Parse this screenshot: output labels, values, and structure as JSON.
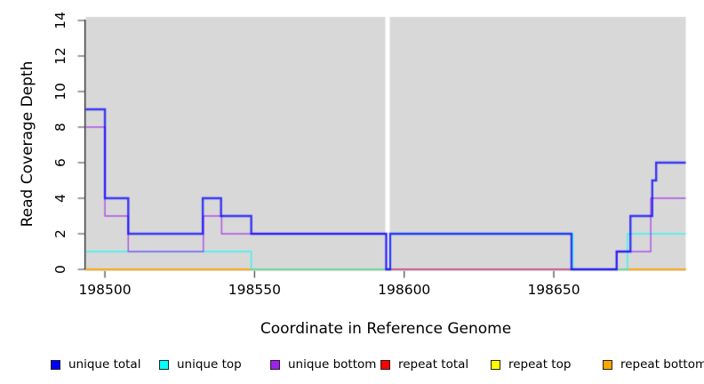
{
  "figure": {
    "page_bg_color": "#FFFFFF",
    "plot_bg_color": "#D8D8D8",
    "axis_color": "#000000",
    "tick_color": "#3a3a3a",
    "text_color": "#000000"
  },
  "chart_data": {
    "type": "line",
    "subtype": "step-coverage",
    "title": "",
    "xlabel": "Coordinate in Reference Genome",
    "ylabel": "Read Coverage Depth",
    "xlim": [
      198493.6,
      198694.1
    ],
    "ylim": [
      0,
      14
    ],
    "xticks": [
      198500,
      198550,
      198600,
      198650
    ],
    "yticks": [
      0,
      2,
      4,
      6,
      8,
      10,
      12,
      14
    ],
    "grid": false,
    "legend_position": "bottom",
    "gap_region": {
      "x_start": 198593.7,
      "x_end": 198595.2,
      "color": "#FFFFFF"
    },
    "line_alpha": 0.75,
    "draw_order": [
      "repeat total",
      "repeat top",
      "repeat bottom",
      "unique top",
      "unique bottom",
      "unique total"
    ],
    "series": [
      {
        "name": "unique total",
        "color": "#0000FF",
        "line_width": 2.4,
        "steps": [
          [
            198493.6,
            9
          ],
          [
            198500,
            4
          ],
          [
            198507.8,
            2
          ],
          [
            198532.7,
            4
          ],
          [
            198538.8,
            3
          ],
          [
            198548.9,
            2
          ],
          [
            198594,
            0
          ],
          [
            198595.3,
            2
          ],
          [
            198655.9,
            0
          ],
          [
            198671,
            1
          ],
          [
            198675.6,
            3
          ],
          [
            198682.9,
            5
          ],
          [
            198684.2,
            6
          ]
        ]
      },
      {
        "name": "unique top",
        "color": "#00FFFF",
        "line_width": 1.4,
        "steps": [
          [
            198493.6,
            1
          ],
          [
            198548.9,
            0
          ],
          [
            198595.3,
            2
          ],
          [
            198656.4,
            0
          ],
          [
            198674.6,
            2
          ]
        ]
      },
      {
        "name": "unique bottom",
        "color": "#A020F0",
        "line_width": 1.4,
        "steps": [
          [
            198493.6,
            8
          ],
          [
            198500,
            3
          ],
          [
            198507.8,
            1
          ],
          [
            198532.9,
            3
          ],
          [
            198539,
            2
          ],
          [
            198594,
            0
          ],
          [
            198671,
            1
          ],
          [
            198682.4,
            4
          ]
        ]
      },
      {
        "name": "repeat total",
        "color": "#FF0000",
        "line_width": 1.2,
        "steps": [
          [
            198493.6,
            0
          ]
        ]
      },
      {
        "name": "repeat top",
        "color": "#FFFF00",
        "line_width": 1.2,
        "steps": [
          [
            198493.6,
            0
          ]
        ]
      },
      {
        "name": "repeat bottom",
        "color": "#FFA500",
        "line_width": 1.8,
        "steps": [
          [
            198493.6,
            0
          ]
        ]
      }
    ]
  },
  "legend": {
    "items": [
      {
        "label": "unique total",
        "color": "#0000FF"
      },
      {
        "label": "unique top",
        "color": "#00FFFF"
      },
      {
        "label": "unique bottom",
        "color": "#A020F0"
      },
      {
        "label": "repeat total",
        "color": "#FF0000"
      },
      {
        "label": "repeat top",
        "color": "#FFFF00"
      },
      {
        "label": "repeat bottom",
        "color": "#FFA500"
      }
    ]
  }
}
